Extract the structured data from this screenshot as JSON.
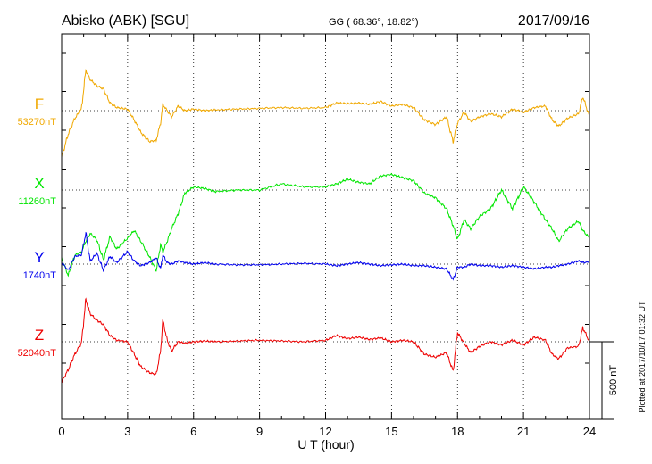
{
  "header": {
    "station": "Abisko (ABK)  [SGU]",
    "coords": "GG ( 68.36°,  18.82°)",
    "date": "2017/09/16"
  },
  "side_note": "Plotted at 2017/10/17 01:32 UT",
  "scale_label": "500 nT",
  "chart_data": {
    "type": "line",
    "title": "Abisko (ABK)  [SGU]",
    "xlabel": "U T (hour)",
    "ylabel": "",
    "xlim": [
      0,
      24
    ],
    "x_ticks": [
      "0",
      "3",
      "6",
      "9",
      "12",
      "15",
      "18",
      "21",
      "24"
    ],
    "grid": true,
    "scale_bar_nT": 500,
    "series": [
      {
        "name": "F",
        "baseline": "53270nT",
        "color": "#f0a800",
        "x": [
          0,
          0.3,
          0.6,
          0.9,
          1.1,
          1.3,
          1.6,
          1.9,
          2.2,
          2.5,
          3.0,
          3.3,
          3.6,
          4.0,
          4.3,
          4.5,
          4.6,
          4.8,
          5.0,
          5.3,
          5.6,
          6.0,
          6.5,
          7.0,
          8.0,
          9.0,
          10.0,
          11.0,
          12.0,
          12.5,
          13.0,
          13.5,
          14.0,
          14.5,
          15.0,
          15.5,
          16.0,
          16.5,
          17.0,
          17.5,
          17.8,
          18.0,
          18.3,
          18.6,
          19.0,
          19.5,
          20.0,
          20.5,
          21.0,
          21.5,
          22.0,
          22.3,
          22.6,
          23.0,
          23.5,
          23.7,
          24.0
        ],
        "y": [
          -300,
          -150,
          -50,
          10,
          260,
          200,
          160,
          140,
          50,
          20,
          10,
          -60,
          -140,
          -200,
          -190,
          -80,
          40,
          0,
          -40,
          30,
          0,
          10,
          0,
          5,
          10,
          15,
          20,
          15,
          20,
          50,
          45,
          50,
          40,
          60,
          30,
          40,
          20,
          -60,
          -90,
          -40,
          -200,
          -80,
          -10,
          -70,
          -40,
          -20,
          -40,
          10,
          -10,
          20,
          30,
          -60,
          -100,
          -50,
          -20,
          90,
          -40
        ]
      },
      {
        "name": "X",
        "baseline": "11260nT",
        "color": "#00e600",
        "x": [
          0,
          0.3,
          0.6,
          0.9,
          1.1,
          1.3,
          1.6,
          1.9,
          2.2,
          2.5,
          3.0,
          3.3,
          3.6,
          4.0,
          4.3,
          4.5,
          4.6,
          4.8,
          5.0,
          5.3,
          5.6,
          6.0,
          6.5,
          7.0,
          8.0,
          9.0,
          10.0,
          11.0,
          12.0,
          12.5,
          13.0,
          13.5,
          14.0,
          14.5,
          15.0,
          15.5,
          16.0,
          16.5,
          17.0,
          17.5,
          17.8,
          18.0,
          18.3,
          18.6,
          19.0,
          19.5,
          20.0,
          20.5,
          21.0,
          21.5,
          22.0,
          22.3,
          22.6,
          23.0,
          23.5,
          23.7,
          24.0
        ],
        "y": [
          -440,
          -550,
          -420,
          -400,
          -330,
          -280,
          -320,
          -450,
          -300,
          -380,
          -310,
          -260,
          -330,
          -430,
          -520,
          -350,
          -400,
          -330,
          -250,
          -150,
          -20,
          20,
          10,
          -10,
          0,
          0,
          40,
          20,
          20,
          40,
          70,
          50,
          40,
          90,
          100,
          80,
          60,
          -20,
          -50,
          -120,
          -230,
          -320,
          -190,
          -250,
          -170,
          -120,
          0,
          -120,
          20,
          -80,
          -190,
          -250,
          -330,
          -250,
          -200,
          -260,
          -310
        ]
      },
      {
        "name": "Y",
        "baseline": "1740nT",
        "color": "#0000ee",
        "x": [
          0,
          0.3,
          0.6,
          0.9,
          1.1,
          1.3,
          1.6,
          1.9,
          2.2,
          2.5,
          3.0,
          3.3,
          3.6,
          4.0,
          4.3,
          4.5,
          4.6,
          4.8,
          5.0,
          5.3,
          5.6,
          6.0,
          6.5,
          7.0,
          8.0,
          9.0,
          10.0,
          11.0,
          12.0,
          12.5,
          13.0,
          13.5,
          14.0,
          14.5,
          15.0,
          15.5,
          16.0,
          16.5,
          17.0,
          17.5,
          17.8,
          18.0,
          18.3,
          18.6,
          19.0,
          19.5,
          20.0,
          20.5,
          21.0,
          21.5,
          22.0,
          22.3,
          22.6,
          23.0,
          23.5,
          23.7,
          24.0
        ],
        "y": [
          10,
          -40,
          50,
          60,
          200,
          20,
          70,
          -40,
          50,
          10,
          80,
          20,
          -10,
          10,
          40,
          -30,
          60,
          10,
          0,
          20,
          10,
          0,
          10,
          0,
          -5,
          -5,
          0,
          5,
          0,
          -10,
          0,
          10,
          0,
          -10,
          -5,
          0,
          -10,
          -10,
          -20,
          -30,
          -100,
          -20,
          -20,
          0,
          -10,
          -10,
          -20,
          -10,
          -20,
          -30,
          -20,
          -20,
          -10,
          0,
          20,
          10,
          15
        ]
      },
      {
        "name": "Z",
        "baseline": "52040nT",
        "color": "#ee0000",
        "x": [
          0,
          0.3,
          0.6,
          0.9,
          1.1,
          1.3,
          1.6,
          1.9,
          2.2,
          2.5,
          3.0,
          3.3,
          3.6,
          4.0,
          4.3,
          4.5,
          4.6,
          4.8,
          5.0,
          5.3,
          5.6,
          6.0,
          6.5,
          7.0,
          8.0,
          9.0,
          10.0,
          11.0,
          12.0,
          12.5,
          13.0,
          13.5,
          14.0,
          14.5,
          15.0,
          15.5,
          16.0,
          16.5,
          17.0,
          17.5,
          17.8,
          18.0,
          18.3,
          18.6,
          19.0,
          19.5,
          20.0,
          20.5,
          21.0,
          21.5,
          22.0,
          22.3,
          22.6,
          23.0,
          23.5,
          23.7,
          24.0
        ],
        "y": [
          -260,
          -180,
          -80,
          -10,
          270,
          180,
          140,
          110,
          40,
          10,
          0,
          -80,
          -160,
          -200,
          -210,
          -60,
          140,
          10,
          -60,
          0,
          -10,
          0,
          5,
          0,
          5,
          10,
          5,
          0,
          10,
          40,
          20,
          30,
          15,
          25,
          0,
          10,
          0,
          -80,
          -100,
          -70,
          -190,
          60,
          -10,
          -70,
          -30,
          0,
          -20,
          10,
          -20,
          30,
          10,
          -80,
          -110,
          -40,
          -30,
          90,
          0
        ]
      }
    ]
  }
}
